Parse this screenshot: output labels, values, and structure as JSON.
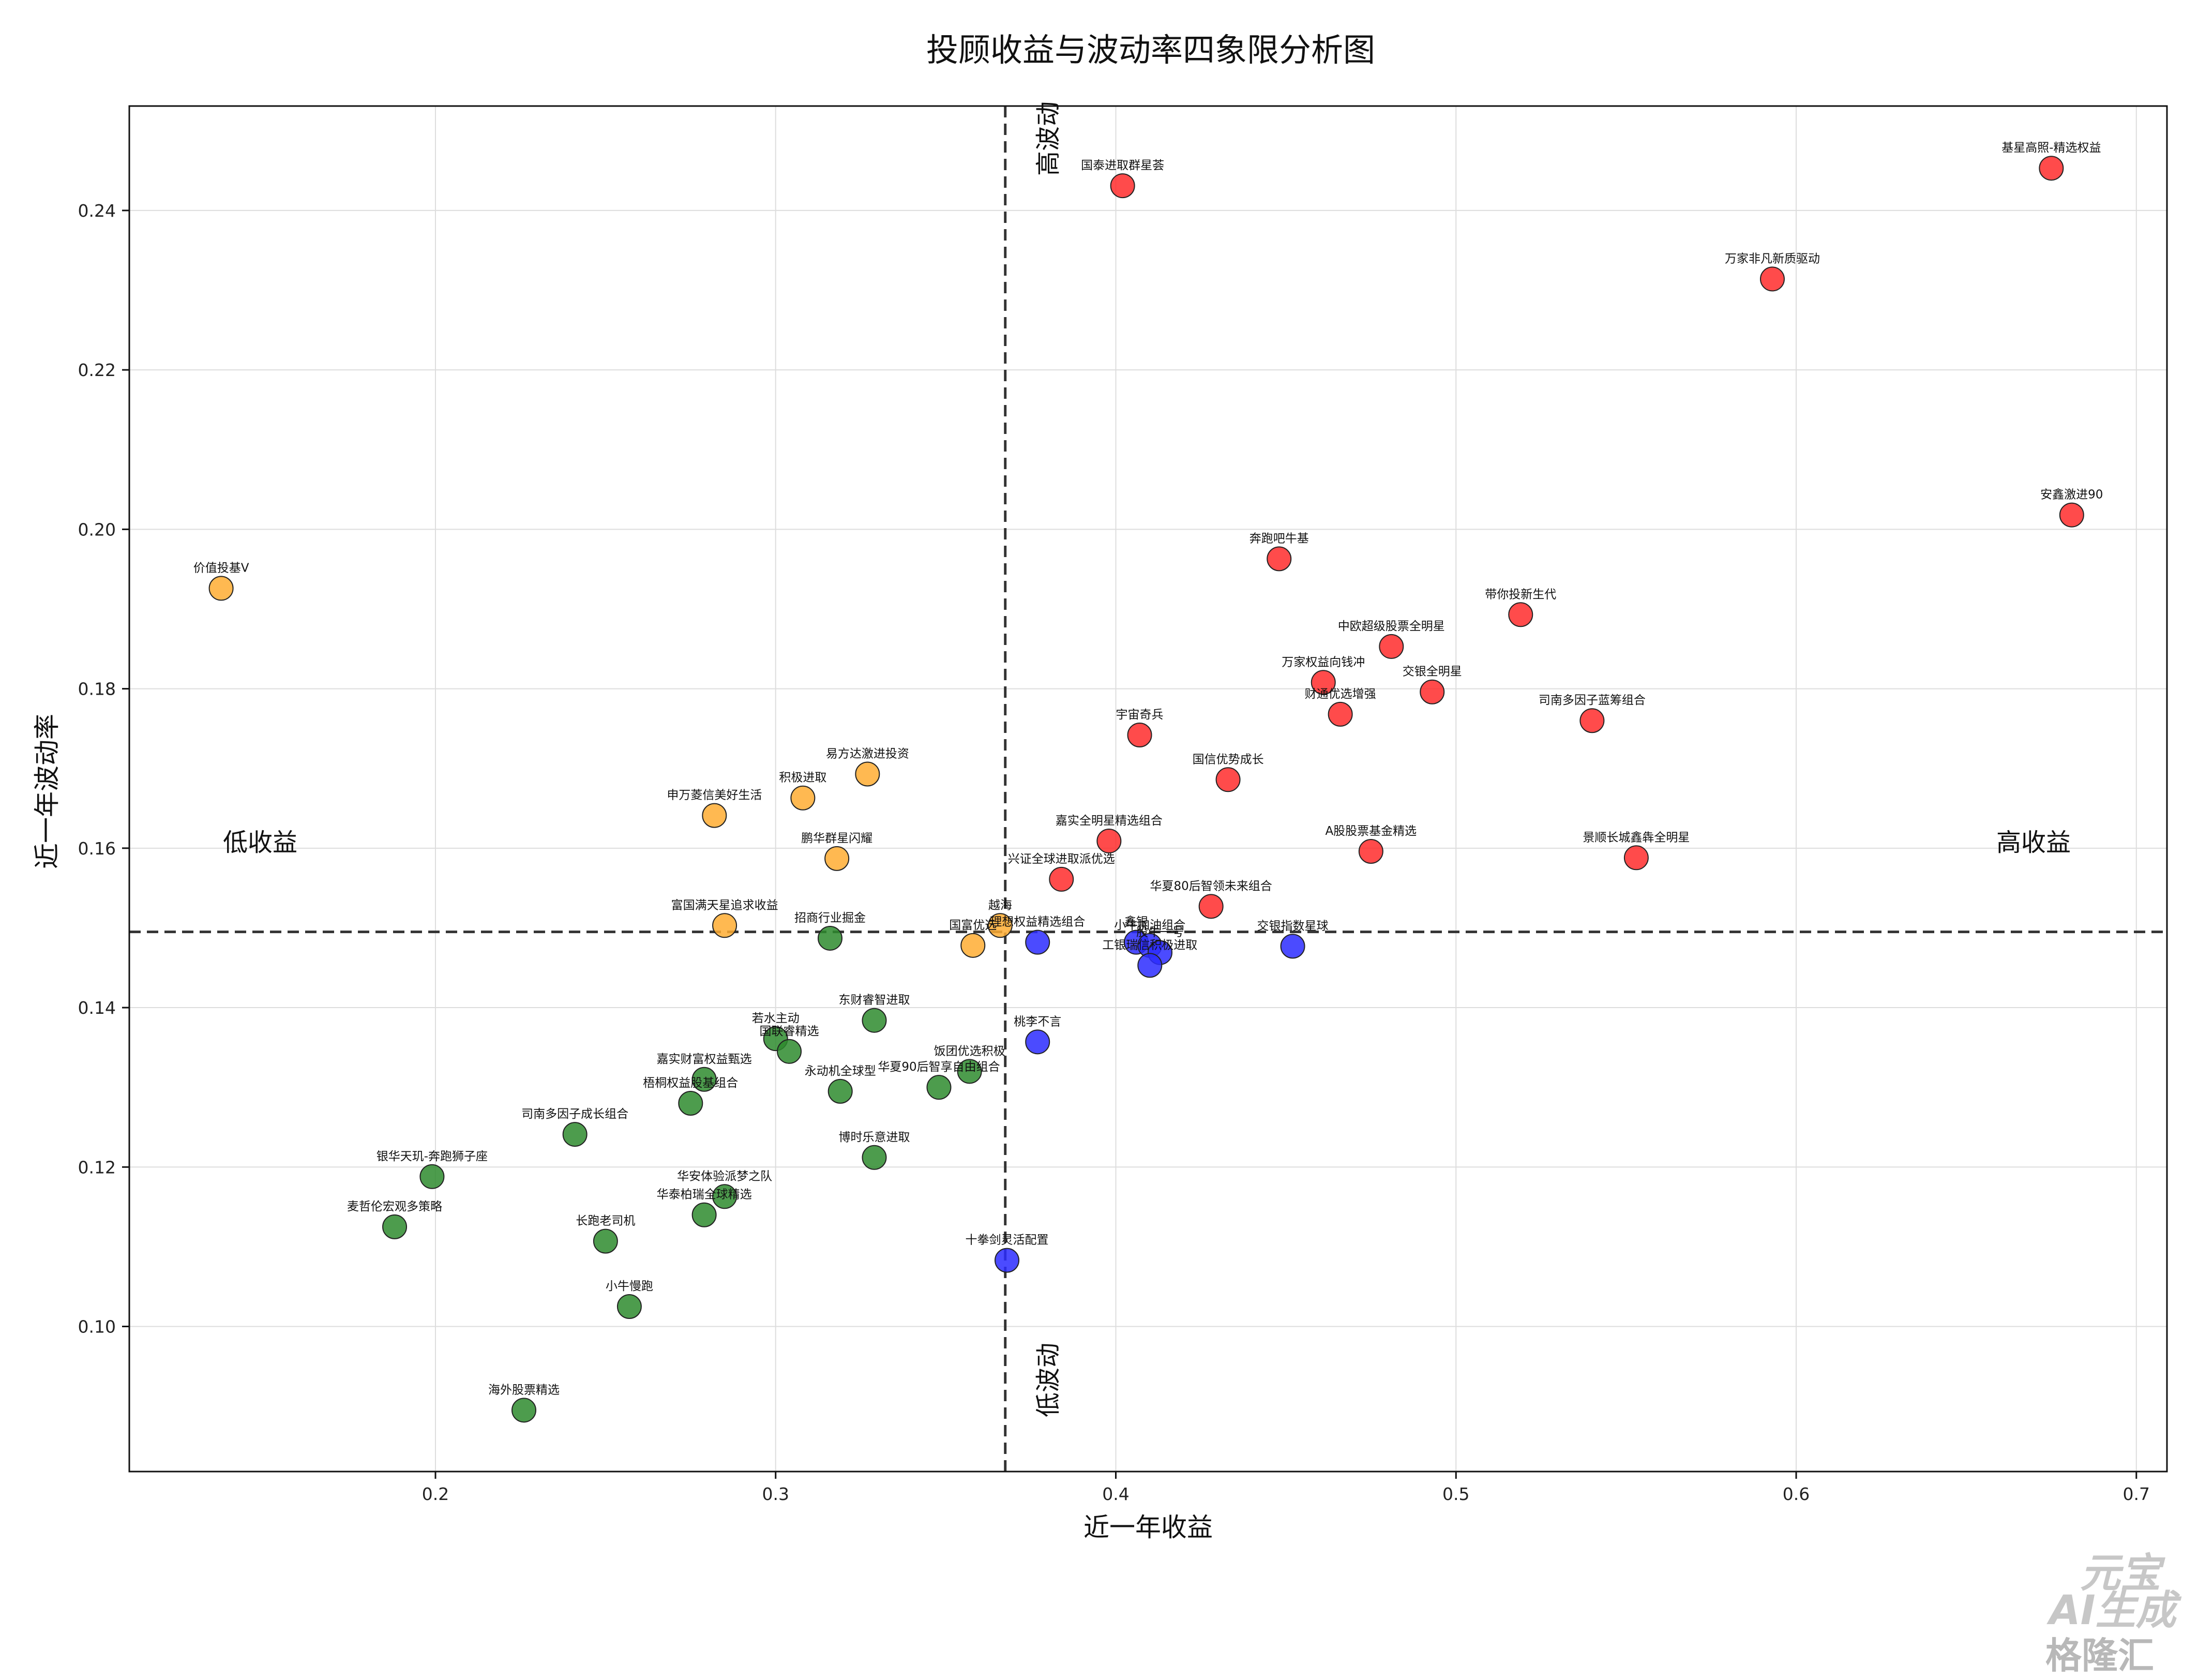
{
  "chart_data": {
    "type": "scatter",
    "title": "投顾收益与波动率四象限分析图",
    "xlabel": "近一年收益",
    "ylabel": "近一年波动率",
    "xlim": [
      0.11,
      0.709
    ],
    "ylim": [
      0.0818,
      0.2531
    ],
    "xticks": [
      0.2,
      0.3,
      0.4,
      0.5,
      0.6,
      0.7
    ],
    "xtick_labels": [
      "0.2",
      "0.3",
      "0.4",
      "0.5",
      "0.6",
      "0.7"
    ],
    "yticks": [
      0.1,
      0.12,
      0.14,
      0.16,
      0.18,
      0.2,
      0.22,
      0.24
    ],
    "ytick_labels": [
      "0.10",
      "0.12",
      "0.14",
      "0.16",
      "0.18",
      "0.20",
      "0.22",
      "0.24"
    ],
    "grid": true,
    "divider_x": 0.3675,
    "divider_y": 0.1495,
    "quadrant_labels": {
      "top": "高波动",
      "bottom": "低波动",
      "left": "低收益",
      "right": "高收益"
    },
    "colors": {
      "red": "#ff2b2b",
      "orange": "#ffad33",
      "green": "#2e8b2e",
      "blue": "#2b2bff"
    },
    "points": [
      {
        "name": "基星高照-精选权益",
        "x": 0.675,
        "y": 0.2453,
        "color": "red"
      },
      {
        "name": "万家非凡新质驱动",
        "x": 0.593,
        "y": 0.2314,
        "color": "red"
      },
      {
        "name": "安鑫激进90",
        "x": 0.681,
        "y": 0.2018,
        "color": "red"
      },
      {
        "name": "国泰进取群星荟",
        "x": 0.402,
        "y": 0.2431,
        "color": "red"
      },
      {
        "name": "奔跑吧牛基",
        "x": 0.448,
        "y": 0.1963,
        "color": "red"
      },
      {
        "name": "带你投新生代",
        "x": 0.519,
        "y": 0.1893,
        "color": "red"
      },
      {
        "name": "中欧超级股票全明星",
        "x": 0.481,
        "y": 0.1853,
        "color": "red"
      },
      {
        "name": "万家权益向钱冲",
        "x": 0.461,
        "y": 0.1808,
        "color": "red"
      },
      {
        "name": "交银全明星",
        "x": 0.493,
        "y": 0.1796,
        "color": "red"
      },
      {
        "name": "财通优选增强",
        "x": 0.466,
        "y": 0.1768,
        "color": "red"
      },
      {
        "name": "司南多因子蓝筹组合",
        "x": 0.54,
        "y": 0.176,
        "color": "red"
      },
      {
        "name": "宇宙奇兵",
        "x": 0.407,
        "y": 0.1742,
        "color": "red"
      },
      {
        "name": "国信优势成长",
        "x": 0.433,
        "y": 0.1686,
        "color": "red"
      },
      {
        "name": "嘉实全明星精选组合",
        "x": 0.398,
        "y": 0.1609,
        "color": "red"
      },
      {
        "name": "A股股票基金精选",
        "x": 0.475,
        "y": 0.1596,
        "color": "red"
      },
      {
        "name": "景顺长城鑫犇全明星",
        "x": 0.553,
        "y": 0.1588,
        "color": "red"
      },
      {
        "name": "兴证全球进取派优选",
        "x": 0.384,
        "y": 0.1561,
        "color": "red"
      },
      {
        "name": "华夏80后智领未来组合",
        "x": 0.428,
        "y": 0.1527,
        "color": "red"
      },
      {
        "name": "价值投基V",
        "x": 0.137,
        "y": 0.1926,
        "color": "orange"
      },
      {
        "name": "易方达激进投资",
        "x": 0.327,
        "y": 0.1693,
        "color": "orange"
      },
      {
        "name": "积极进取",
        "x": 0.308,
        "y": 0.1663,
        "color": "orange"
      },
      {
        "name": "申万菱信美好生活",
        "x": 0.282,
        "y": 0.1641,
        "color": "orange"
      },
      {
        "name": "鹏华群星闪耀",
        "x": 0.318,
        "y": 0.1587,
        "color": "orange"
      },
      {
        "name": "富国满天星追求收益",
        "x": 0.285,
        "y": 0.1503,
        "color": "orange"
      },
      {
        "name": "越海",
        "x": 0.366,
        "y": 0.1503,
        "color": "orange"
      },
      {
        "name": "国富优选",
        "x": 0.358,
        "y": 0.1478,
        "color": "orange"
      },
      {
        "name": "招商行业掘金",
        "x": 0.316,
        "y": 0.1487,
        "color": "green"
      },
      {
        "name": "东财睿智进取",
        "x": 0.329,
        "y": 0.1384,
        "color": "green"
      },
      {
        "name": "若水主动",
        "x": 0.3,
        "y": 0.1361,
        "color": "green"
      },
      {
        "name": "国联睿精选",
        "x": 0.304,
        "y": 0.1345,
        "color": "green"
      },
      {
        "name": "饭团优选积极",
        "x": 0.357,
        "y": 0.132,
        "color": "green"
      },
      {
        "name": "嘉实财富权益甄选",
        "x": 0.279,
        "y": 0.131,
        "color": "green"
      },
      {
        "name": "永动机全球型",
        "x": 0.319,
        "y": 0.1295,
        "color": "green"
      },
      {
        "name": "华夏90后智享自由组合",
        "x": 0.348,
        "y": 0.13,
        "color": "green"
      },
      {
        "name": "梧桐权益股基组合",
        "x": 0.275,
        "y": 0.128,
        "color": "green"
      },
      {
        "name": "司南多因子成长组合",
        "x": 0.241,
        "y": 0.1241,
        "color": "green"
      },
      {
        "name": "博时乐意进取",
        "x": 0.329,
        "y": 0.1212,
        "color": "green"
      },
      {
        "name": "银华天玑-奔跑狮子座",
        "x": 0.199,
        "y": 0.1188,
        "color": "green"
      },
      {
        "name": "华安体验派梦之队",
        "x": 0.285,
        "y": 0.1163,
        "color": "green"
      },
      {
        "name": "华泰柏瑞全球精选",
        "x": 0.279,
        "y": 0.114,
        "color": "green"
      },
      {
        "name": "麦哲伦宏观多策略",
        "x": 0.188,
        "y": 0.1125,
        "color": "green"
      },
      {
        "name": "长跑老司机",
        "x": 0.25,
        "y": 0.1107,
        "color": "green"
      },
      {
        "name": "小牛慢跑",
        "x": 0.257,
        "y": 0.1025,
        "color": "green"
      },
      {
        "name": "海外股票精选",
        "x": 0.226,
        "y": 0.0895,
        "color": "green"
      },
      {
        "name": "理想权益精选组合",
        "x": 0.377,
        "y": 0.1482,
        "color": "blue"
      },
      {
        "name": "鑫银",
        "x": 0.406,
        "y": 0.1482,
        "color": "blue"
      },
      {
        "name": "小牛加油组合",
        "x": 0.41,
        "y": 0.1478,
        "color": "blue"
      },
      {
        "name": "股牛一号",
        "x": 0.413,
        "y": 0.1469,
        "color": "blue"
      },
      {
        "name": "工银瑞信积极进取",
        "x": 0.41,
        "y": 0.1453,
        "color": "blue"
      },
      {
        "name": "交银指数星球",
        "x": 0.452,
        "y": 0.1477,
        "color": "blue"
      },
      {
        "name": "桃李不言",
        "x": 0.377,
        "y": 0.1357,
        "color": "blue"
      },
      {
        "name": "十拳剑灵活配置",
        "x": 0.368,
        "y": 0.1083,
        "color": "blue"
      }
    ]
  },
  "watermark": {
    "line1": "元宝",
    "line2": "AI生成",
    "line3": "格隆汇"
  }
}
